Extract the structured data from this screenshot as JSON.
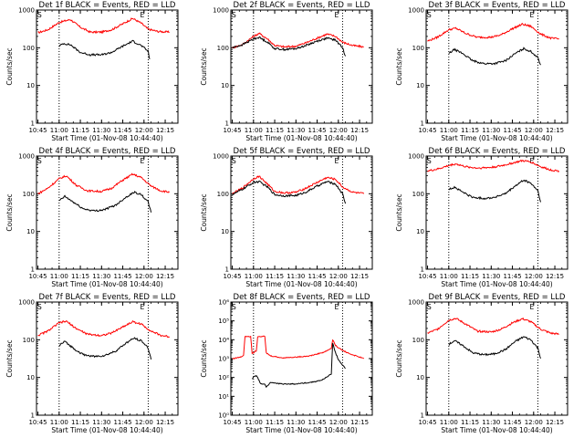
{
  "panels": [
    {
      "title": "Det 1f BLACK = Events, RED = LLD",
      "xlabel": "Start Time (01-Nov-08 10:44:40)",
      "ylabel": "Counts/sec",
      "marker_start": "S",
      "marker_end": "E"
    },
    {
      "title": "Det 2f BLACK = Events, RED = LLD",
      "xlabel": "Start Time (01-Nov-08 10:44:40)",
      "ylabel": "Counts/sec",
      "marker_start": "S",
      "marker_end": "E"
    },
    {
      "title": "Det 3f BLACK = Events, RED = LLD",
      "xlabel": "Start Time (01-Nov-08 10:44:40)",
      "ylabel": "Counts/sec",
      "marker_start": "S",
      "marker_end": "E"
    },
    {
      "title": "Det 4f BLACK = Events, RED = LLD",
      "xlabel": "Start Time (01-Nov-08 10:44:40)",
      "ylabel": "Counts/sec",
      "marker_start": "S",
      "marker_end": "E"
    },
    {
      "title": "Det 5f BLACK = Events, RED = LLD",
      "xlabel": "Start Time (01-Nov-08 10:44:40)",
      "ylabel": "Counts/sec",
      "marker_start": "S",
      "marker_end": "E"
    },
    {
      "title": "Det 6f BLACK = Events, RED = LLD",
      "xlabel": "Start Time (01-Nov-08 10:44:40)",
      "ylabel": "Counts/sec",
      "marker_start": "S",
      "marker_end": "E"
    },
    {
      "title": "Det 7f BLACK = Events, RED = LLD",
      "xlabel": "Start Time (01-Nov-08 10:44:40)",
      "ylabel": "Counts/sec",
      "marker_start": "S",
      "marker_end": "E"
    },
    {
      "title": "Det 8f BLACK = Events, RED = LLD",
      "xlabel": "Start Time (01-Nov-08 10:44:40)",
      "ylabel": "Counts/sec",
      "marker_start": "S",
      "marker_end": "E"
    },
    {
      "title": "Det 9f BLACK = Events, RED = LLD",
      "xlabel": "Start Time (01-Nov-08 10:44:40)",
      "ylabel": "Counts/sec",
      "marker_start": "S",
      "marker_end": "E"
    }
  ],
  "chart_data": [
    {
      "type": "line",
      "title": "Det 1f BLACK = Events, RED = LLD",
      "xlabel": "Start Time (01-Nov-08 10:44:40)",
      "ylabel": "Counts/sec",
      "yscale": "log",
      "ylim": [
        1,
        1000
      ],
      "yticks": [
        "1",
        "10",
        "100",
        "1000"
      ],
      "xticks": [
        "10:45",
        "11:00",
        "11:15",
        "11:30",
        "11:45",
        "12:00",
        "12:15"
      ],
      "vlines": [
        "11:00",
        "12:03"
      ],
      "series": [
        {
          "color": "#ff0000",
          "x": [
            "10:45",
            "10:52",
            "11:00",
            "11:08",
            "11:15",
            "11:22",
            "11:30",
            "11:37",
            "11:45",
            "11:52",
            "11:58",
            "12:03",
            "12:10",
            "12:18"
          ],
          "y": [
            250,
            300,
            470,
            560,
            350,
            260,
            260,
            300,
            430,
            600,
            450,
            310,
            270,
            260
          ]
        },
        {
          "color": "#000000",
          "x": [
            "11:00",
            "11:03",
            "11:08",
            "11:15",
            "11:22",
            "11:30",
            "11:37",
            "11:45",
            "11:52",
            "11:58",
            "12:03",
            "12:04"
          ],
          "y": [
            110,
            130,
            120,
            75,
            65,
            65,
            75,
            110,
            150,
            115,
            80,
            50
          ]
        }
      ]
    },
    {
      "type": "line",
      "title": "Det 2f BLACK = Events, RED = LLD",
      "xlabel": "Start Time (01-Nov-08 10:44:40)",
      "ylabel": "Counts/sec",
      "yscale": "log",
      "ylim": [
        1,
        1000
      ],
      "yticks": [
        "1",
        "10",
        "100",
        "1000"
      ],
      "xticks": [
        "10:45",
        "11:00",
        "11:15",
        "11:30",
        "11:45",
        "12:00",
        "12:15"
      ],
      "vlines": [
        "11:00",
        "12:03"
      ],
      "series": [
        {
          "color": "#ff0000",
          "x": [
            "10:45",
            "10:52",
            "11:00",
            "11:04",
            "11:10",
            "11:15",
            "11:22",
            "11:30",
            "11:37",
            "11:45",
            "11:52",
            "11:58",
            "12:03",
            "12:10",
            "12:18"
          ],
          "y": [
            100,
            120,
            200,
            240,
            170,
            115,
            105,
            110,
            135,
            180,
            230,
            200,
            140,
            115,
            105
          ]
        },
        {
          "color": "#000000",
          "x": [
            "10:45",
            "10:52",
            "11:00",
            "11:04",
            "11:10",
            "11:15",
            "11:22",
            "11:30",
            "11:37",
            "11:45",
            "11:52",
            "11:58",
            "12:03",
            "12:05"
          ],
          "y": [
            100,
            120,
            170,
            190,
            140,
            95,
            90,
            95,
            115,
            150,
            180,
            160,
            100,
            60
          ]
        }
      ]
    },
    {
      "type": "line",
      "title": "Det 3f BLACK = Events, RED = LLD",
      "xlabel": "Start Time (01-Nov-08 10:44:40)",
      "ylabel": "Counts/sec",
      "yscale": "log",
      "ylim": [
        1,
        1000
      ],
      "yticks": [
        "1",
        "10",
        "100",
        "1000"
      ],
      "xticks": [
        "10:45",
        "11:00",
        "11:15",
        "11:30",
        "11:45",
        "12:00",
        "12:15"
      ],
      "vlines": [
        "11:00",
        "12:03"
      ],
      "series": [
        {
          "color": "#ff0000",
          "x": [
            "10:45",
            "10:52",
            "11:00",
            "11:05",
            "11:12",
            "11:20",
            "11:30",
            "11:37",
            "11:45",
            "11:52",
            "11:58",
            "12:05",
            "12:12",
            "12:18"
          ],
          "y": [
            150,
            190,
            300,
            330,
            240,
            190,
            190,
            220,
            320,
            420,
            370,
            230,
            180,
            170
          ]
        },
        {
          "color": "#000000",
          "x": [
            "11:00",
            "11:04",
            "11:10",
            "11:17",
            "11:25",
            "11:32",
            "11:40",
            "11:47",
            "11:53",
            "11:58",
            "12:03",
            "12:05"
          ],
          "y": [
            70,
            90,
            70,
            45,
            38,
            38,
            45,
            70,
            95,
            80,
            55,
            35
          ]
        }
      ]
    },
    {
      "type": "line",
      "title": "Det 4f BLACK = Events, RED = LLD",
      "xlabel": "Start Time (01-Nov-08 10:44:40)",
      "ylabel": "Counts/sec",
      "yscale": "log",
      "ylim": [
        1,
        1000
      ],
      "yticks": [
        "1",
        "10",
        "100",
        "1000"
      ],
      "xticks": [
        "10:45",
        "11:00",
        "11:15",
        "11:30",
        "11:45",
        "12:00",
        "12:15"
      ],
      "vlines": [
        "11:00",
        "12:03"
      ],
      "series": [
        {
          "color": "#ff0000",
          "x": [
            "10:45",
            "10:52",
            "11:00",
            "11:05",
            "11:12",
            "11:20",
            "11:30",
            "11:37",
            "11:45",
            "11:52",
            "11:58",
            "12:05",
            "12:12",
            "12:18"
          ],
          "y": [
            100,
            140,
            250,
            300,
            170,
            120,
            115,
            140,
            230,
            330,
            270,
            160,
            120,
            110
          ]
        },
        {
          "color": "#000000",
          "x": [
            "11:00",
            "11:04",
            "11:10",
            "11:17",
            "11:25",
            "11:32",
            "11:40",
            "11:47",
            "11:53",
            "11:58",
            "12:03",
            "12:05"
          ],
          "y": [
            65,
            85,
            60,
            40,
            35,
            38,
            50,
            80,
            110,
            95,
            60,
            32
          ]
        }
      ]
    },
    {
      "type": "line",
      "title": "Det 5f BLACK = Events, RED = LLD",
      "xlabel": "Start Time (01-Nov-08 10:44:40)",
      "ylabel": "Counts/sec",
      "yscale": "log",
      "ylim": [
        1,
        1000
      ],
      "yticks": [
        "1",
        "10",
        "100",
        "1000"
      ],
      "xticks": [
        "10:45",
        "11:00",
        "11:15",
        "11:30",
        "11:45",
        "12:00",
        "12:15"
      ],
      "vlines": [
        "11:00",
        "12:03"
      ],
      "series": [
        {
          "color": "#ff0000",
          "x": [
            "10:45",
            "10:52",
            "11:00",
            "11:04",
            "11:10",
            "11:15",
            "11:22",
            "11:30",
            "11:37",
            "11:45",
            "11:52",
            "11:58",
            "12:03",
            "12:10",
            "12:18"
          ],
          "y": [
            100,
            140,
            250,
            290,
            180,
            115,
            105,
            110,
            140,
            200,
            270,
            240,
            150,
            110,
            100
          ]
        },
        {
          "color": "#000000",
          "x": [
            "10:45",
            "10:52",
            "11:00",
            "11:04",
            "11:10",
            "11:15",
            "11:22",
            "11:30",
            "11:37",
            "11:45",
            "11:52",
            "11:58",
            "12:03",
            "12:05"
          ],
          "y": [
            95,
            130,
            200,
            210,
            150,
            95,
            88,
            90,
            110,
            160,
            210,
            180,
            100,
            55
          ]
        }
      ]
    },
    {
      "type": "line",
      "title": "Det 6f BLACK = Events, RED = LLD",
      "xlabel": "Start Time (01-Nov-08 10:44:40)",
      "ylabel": "Counts/sec",
      "yscale": "log",
      "ylim": [
        1,
        1000
      ],
      "yticks": [
        "1",
        "10",
        "100",
        "1000"
      ],
      "xticks": [
        "10:45",
        "11:00",
        "11:15",
        "11:30",
        "11:45",
        "12:00",
        "12:15"
      ],
      "vlines": [
        "11:00",
        "12:03"
      ],
      "series": [
        {
          "color": "#ff0000",
          "x": [
            "10:45",
            "10:52",
            "11:00",
            "11:05",
            "11:12",
            "11:20",
            "11:30",
            "11:37",
            "11:45",
            "11:52",
            "11:58",
            "12:05",
            "12:12",
            "12:18"
          ],
          "y": [
            400,
            450,
            560,
            620,
            520,
            480,
            500,
            550,
            650,
            750,
            700,
            520,
            430,
            400
          ]
        },
        {
          "color": "#000000",
          "x": [
            "11:00",
            "11:04",
            "11:10",
            "11:17",
            "11:25",
            "11:32",
            "11:40",
            "11:47",
            "11:53",
            "11:58",
            "12:03",
            "12:05"
          ],
          "y": [
            130,
            150,
            110,
            80,
            75,
            80,
            100,
            160,
            230,
            190,
            120,
            60
          ]
        }
      ]
    },
    {
      "type": "line",
      "title": "Det 7f BLACK = Events, RED = LLD",
      "xlabel": "Start Time (01-Nov-08 10:44:40)",
      "ylabel": "Counts/sec",
      "yscale": "log",
      "ylim": [
        1,
        1000
      ],
      "yticks": [
        "1",
        "10",
        "100",
        "1000"
      ],
      "xticks": [
        "10:45",
        "11:00",
        "11:15",
        "11:30",
        "11:45",
        "12:00",
        "12:15"
      ],
      "vlines": [
        "11:00",
        "12:03"
      ],
      "series": [
        {
          "color": "#ff0000",
          "x": [
            "10:45",
            "10:52",
            "11:00",
            "11:05",
            "11:12",
            "11:20",
            "11:30",
            "11:37",
            "11:45",
            "11:52",
            "11:58",
            "12:05",
            "12:12",
            "12:18"
          ],
          "y": [
            130,
            170,
            280,
            310,
            200,
            140,
            130,
            150,
            220,
            300,
            260,
            170,
            130,
            120
          ]
        },
        {
          "color": "#000000",
          "x": [
            "11:00",
            "11:04",
            "11:10",
            "11:17",
            "11:25",
            "11:32",
            "11:40",
            "11:47",
            "11:53",
            "11:58",
            "12:03",
            "12:05"
          ],
          "y": [
            70,
            90,
            60,
            40,
            36,
            38,
            50,
            80,
            110,
            95,
            60,
            30
          ]
        }
      ]
    },
    {
      "type": "line",
      "title": "Det 8f BLACK = Events, RED = LLD",
      "xlabel": "Start Time (01-Nov-08 10:44:40)",
      "ylabel": "Counts/sec",
      "yscale": "log",
      "ylim": [
        1,
        1000000
      ],
      "yticks": [
        "10⁰",
        "10¹",
        "10²",
        "10³",
        "10⁴",
        "10⁵",
        "10⁶"
      ],
      "xticks": [
        "10:45",
        "11:00",
        "11:15",
        "11:30",
        "11:45",
        "12:00",
        "12:15"
      ],
      "vlines": [
        "11:00",
        "12:03"
      ],
      "series": [
        {
          "color": "#ff0000",
          "x": [
            "10:45",
            "10:51",
            "10:53",
            "10:54",
            "10:58",
            "10:59",
            "11:00",
            "11:01",
            "11:02",
            "11:03",
            "11:08",
            "11:09",
            "11:12",
            "11:20",
            "11:30",
            "11:40",
            "11:50",
            "11:55",
            "11:56",
            "11:58",
            "12:02",
            "12:08",
            "12:15",
            "12:18"
          ],
          "y": [
            1000,
            1200,
            1500,
            15000,
            15000,
            2000,
            2000,
            2500,
            2500,
            15000,
            15000,
            2000,
            1400,
            1100,
            1200,
            1400,
            2200,
            3500,
            10000,
            5000,
            3000,
            1800,
            1200,
            1000
          ]
        },
        {
          "color": "#000000",
          "x": [
            "10:59",
            "11:00",
            "11:02",
            "11:03",
            "11:05",
            "11:08",
            "11:09",
            "11:12",
            "11:20",
            "11:30",
            "11:40",
            "11:48",
            "11:55",
            "11:56",
            "11:58",
            "12:00",
            "12:03",
            "12:05"
          ],
          "y": [
            80,
            110,
            120,
            100,
            45,
            45,
            30,
            55,
            45,
            45,
            55,
            70,
            150,
            7000,
            2000,
            900,
            450,
            300
          ]
        }
      ]
    },
    {
      "type": "line",
      "title": "Det 9f BLACK = Events, RED = LLD",
      "xlabel": "Start Time (01-Nov-08 10:44:40)",
      "ylabel": "Counts/sec",
      "yscale": "log",
      "ylim": [
        1,
        1000
      ],
      "yticks": [
        "1",
        "10",
        "100",
        "1000"
      ],
      "xticks": [
        "10:45",
        "11:00",
        "11:15",
        "11:30",
        "11:45",
        "12:00",
        "12:15"
      ],
      "vlines": [
        "11:00",
        "12:03"
      ],
      "series": [
        {
          "color": "#ff0000",
          "x": [
            "10:45",
            "10:52",
            "11:00",
            "11:05",
            "11:12",
            "11:20",
            "11:30",
            "11:37",
            "11:45",
            "11:52",
            "11:58",
            "12:05",
            "12:12",
            "12:18"
          ],
          "y": [
            150,
            190,
            330,
            370,
            260,
            170,
            160,
            190,
            280,
            360,
            300,
            190,
            150,
            140
          ]
        },
        {
          "color": "#000000",
          "x": [
            "11:00",
            "11:04",
            "11:10",
            "11:17",
            "11:25",
            "11:32",
            "11:40",
            "11:47",
            "11:53",
            "11:58",
            "12:03",
            "12:05"
          ],
          "y": [
            75,
            95,
            70,
            45,
            40,
            42,
            55,
            90,
            120,
            100,
            60,
            32
          ]
        }
      ]
    }
  ]
}
